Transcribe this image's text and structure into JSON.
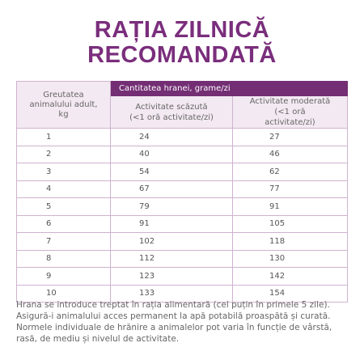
{
  "header": {
    "title_lines": [
      "RAȚIA ZILNICĂ",
      "RECOMANDATĂ"
    ]
  },
  "table": {
    "first_header": "Greutatea animalului adult, kg",
    "group_header": "Cantitatea hranei, grame/zi",
    "sub_headers": [
      "Activitate scăzută (<1 oră activitate/zi)",
      "Activitate moderată (<1 oră activitate/zi)"
    ],
    "rows": [
      [
        1,
        24,
        27
      ],
      [
        2,
        40,
        46
      ],
      [
        3,
        54,
        62
      ],
      [
        4,
        67,
        77
      ],
      [
        5,
        79,
        91
      ],
      [
        6,
        91,
        105
      ],
      [
        7,
        102,
        118
      ],
      [
        8,
        112,
        130
      ],
      [
        9,
        123,
        142
      ],
      [
        10,
        133,
        154
      ]
    ]
  },
  "footnote": "Hrana se introduce treptat în rația alimentară (cel puțin în primele 5 zile). Asigură-i animalului acces permanent la apă potabilă proaspătă și curată. Normele individuale de hrănire a animalelor pot varia în funcție de vârstă, rasă, de mediu și nivelul de activitate."
}
